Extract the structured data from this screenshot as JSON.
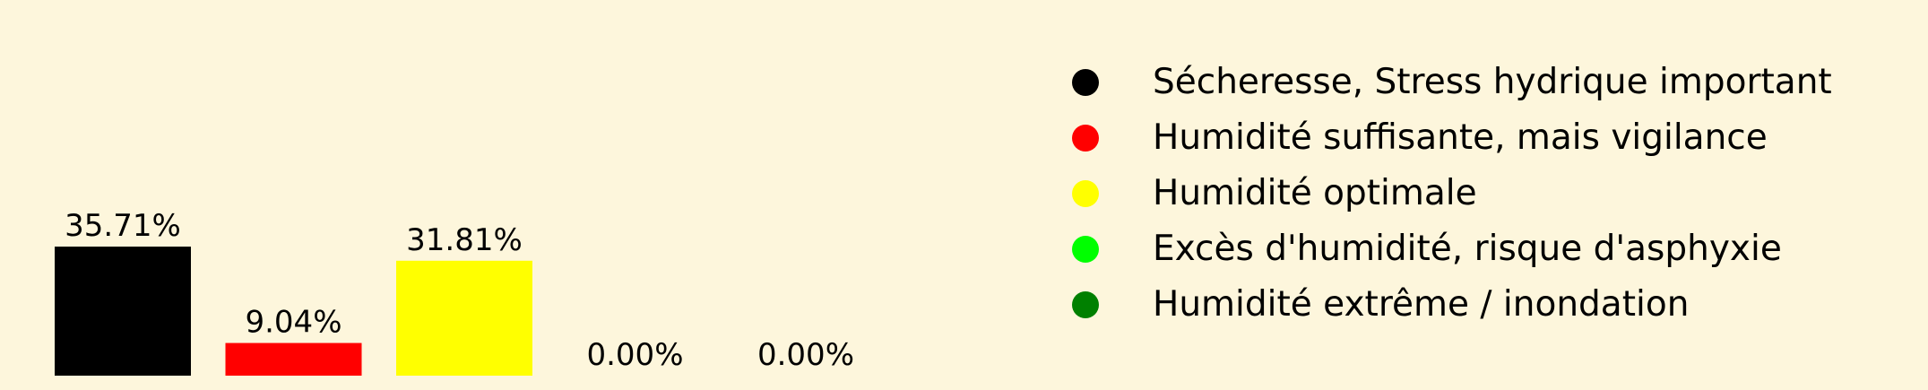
{
  "chart_data": {
    "type": "bar",
    "categories": [
      "Sécheresse, Stress hydrique important",
      "Humidité suffisante, mais vigilance",
      "Humidité optimale",
      "Excès d'humidité, risque d'asphyxie",
      "Humidité extrême / inondation"
    ],
    "values": [
      35.71,
      9.04,
      31.81,
      0.0,
      0.0
    ],
    "value_labels": [
      "35.71%",
      "9.04%",
      "31.81%",
      "0.00%",
      "0.00%"
    ],
    "colors": [
      "#000000",
      "#ff0000",
      "#ffff00",
      "#00ff00",
      "#008000"
    ],
    "unit": "%",
    "legend": {
      "placement": "right",
      "entries": [
        {
          "label": "Sécheresse, Stress hydrique important",
          "color": "#000000"
        },
        {
          "label": "Humidité suffisante, mais vigilance",
          "color": "#ff0000"
        },
        {
          "label": "Humidité optimale",
          "color": "#ffff00"
        },
        {
          "label": "Excès d'humidité, risque d'asphyxie",
          "color": "#00ff00"
        },
        {
          "label": "Humidité extrême / inondation",
          "color": "#008000"
        }
      ]
    },
    "background": "#fdf6dc",
    "axes_visible": false,
    "grid": false,
    "title": "",
    "xlabel": "",
    "ylabel": ""
  }
}
